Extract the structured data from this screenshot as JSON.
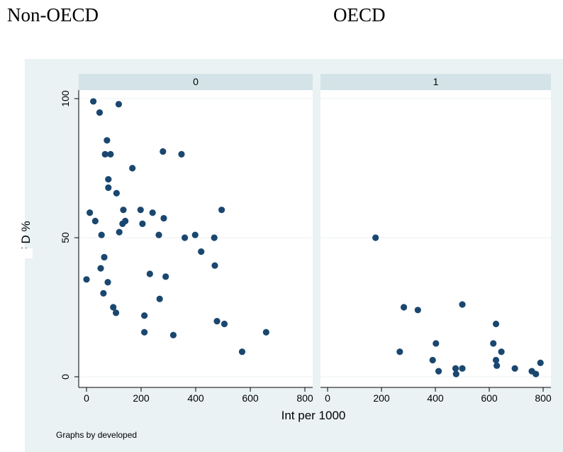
{
  "header": {
    "left_label": "Non-OECD",
    "right_label": "OECD"
  },
  "chart_data": {
    "type": "scatter",
    "xlabel": "Int per 1000",
    "ylabel": "F D %",
    "note": "Graphs by developed",
    "xlim": [
      0,
      800
    ],
    "ylim": [
      0,
      100
    ],
    "xticks": [
      0,
      200,
      400,
      600,
      800
    ],
    "yticks": [
      0,
      50,
      100
    ],
    "grid": true,
    "colors": {
      "outer_background": "#eaf2f3",
      "plot_background": "#ffffff",
      "strip_background": "#d4e3e7",
      "marker": "#1a476f",
      "gridline": "#eaf2f3"
    },
    "panels": [
      {
        "strip_label": "0",
        "points": [
          {
            "x": 0,
            "y": 35
          },
          {
            "x": 12,
            "y": 59
          },
          {
            "x": 25,
            "y": 99
          },
          {
            "x": 32,
            "y": 56
          },
          {
            "x": 48,
            "y": 95
          },
          {
            "x": 52,
            "y": 39
          },
          {
            "x": 55,
            "y": 51
          },
          {
            "x": 62,
            "y": 30
          },
          {
            "x": 65,
            "y": 43
          },
          {
            "x": 68,
            "y": 80
          },
          {
            "x": 75,
            "y": 85
          },
          {
            "x": 78,
            "y": 34
          },
          {
            "x": 80,
            "y": 71
          },
          {
            "x": 80,
            "y": 68
          },
          {
            "x": 88,
            "y": 80
          },
          {
            "x": 98,
            "y": 25
          },
          {
            "x": 108,
            "y": 23
          },
          {
            "x": 110,
            "y": 66
          },
          {
            "x": 118,
            "y": 98
          },
          {
            "x": 120,
            "y": 52
          },
          {
            "x": 132,
            "y": 55
          },
          {
            "x": 135,
            "y": 60
          },
          {
            "x": 142,
            "y": 56
          },
          {
            "x": 168,
            "y": 75
          },
          {
            "x": 198,
            "y": 60
          },
          {
            "x": 205,
            "y": 55
          },
          {
            "x": 212,
            "y": 22
          },
          {
            "x": 212,
            "y": 16
          },
          {
            "x": 232,
            "y": 37
          },
          {
            "x": 242,
            "y": 59
          },
          {
            "x": 265,
            "y": 51
          },
          {
            "x": 268,
            "y": 28
          },
          {
            "x": 280,
            "y": 81
          },
          {
            "x": 283,
            "y": 57
          },
          {
            "x": 290,
            "y": 36
          },
          {
            "x": 318,
            "y": 15
          },
          {
            "x": 348,
            "y": 80
          },
          {
            "x": 360,
            "y": 50
          },
          {
            "x": 398,
            "y": 51
          },
          {
            "x": 420,
            "y": 45
          },
          {
            "x": 468,
            "y": 50
          },
          {
            "x": 470,
            "y": 40
          },
          {
            "x": 478,
            "y": 20
          },
          {
            "x": 495,
            "y": 60
          },
          {
            "x": 505,
            "y": 19
          },
          {
            "x": 570,
            "y": 9
          },
          {
            "x": 658,
            "y": 16
          }
        ]
      },
      {
        "strip_label": "1",
        "points": [
          {
            "x": 178,
            "y": 50
          },
          {
            "x": 268,
            "y": 9
          },
          {
            "x": 283,
            "y": 25
          },
          {
            "x": 335,
            "y": 24
          },
          {
            "x": 390,
            "y": 6
          },
          {
            "x": 402,
            "y": 12
          },
          {
            "x": 412,
            "y": 2
          },
          {
            "x": 475,
            "y": 3
          },
          {
            "x": 477,
            "y": 1
          },
          {
            "x": 500,
            "y": 26
          },
          {
            "x": 500,
            "y": 3
          },
          {
            "x": 615,
            "y": 12
          },
          {
            "x": 625,
            "y": 19
          },
          {
            "x": 625,
            "y": 6
          },
          {
            "x": 628,
            "y": 4
          },
          {
            "x": 645,
            "y": 9
          },
          {
            "x": 695,
            "y": 3
          },
          {
            "x": 758,
            "y": 2
          },
          {
            "x": 773,
            "y": 1
          },
          {
            "x": 790,
            "y": 5
          }
        ]
      }
    ]
  }
}
